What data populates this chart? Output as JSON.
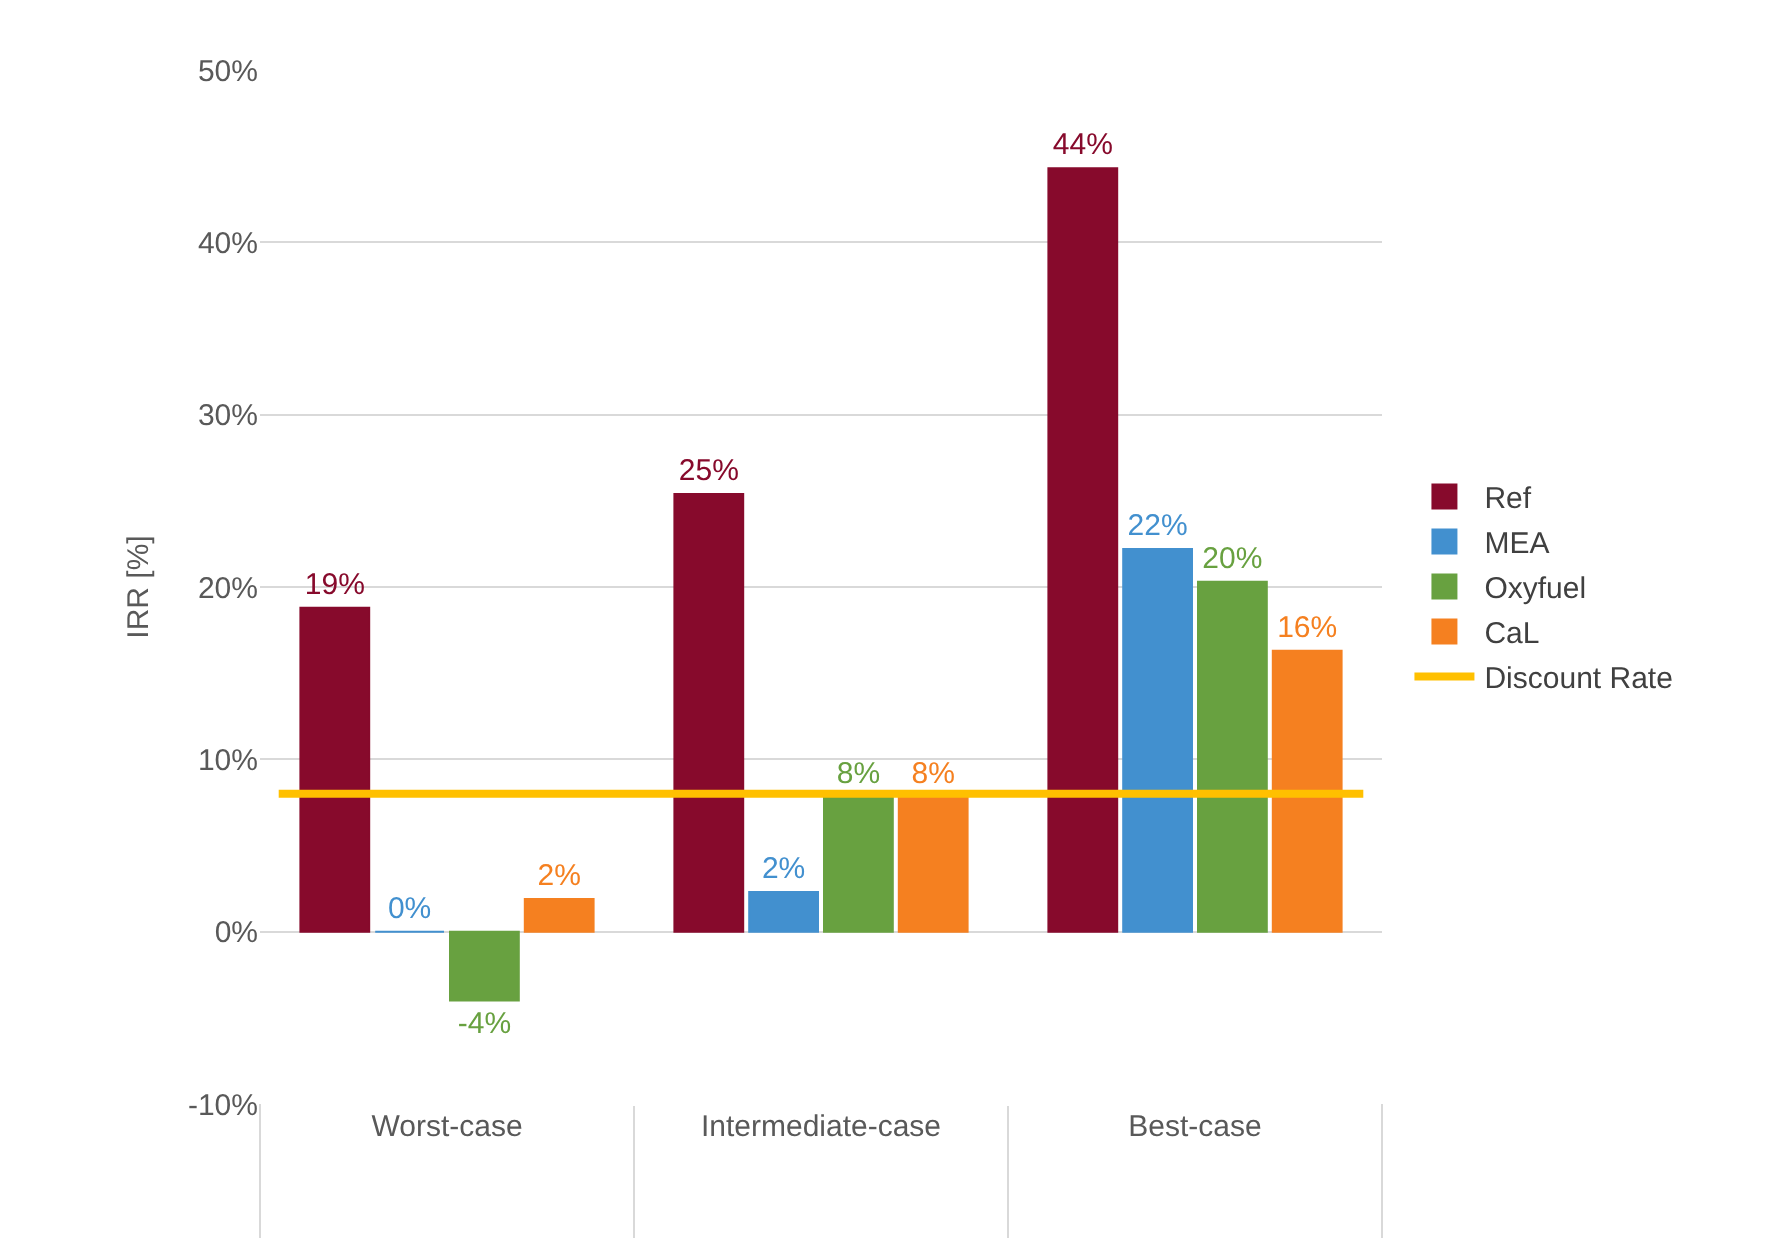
{
  "chart_data": {
    "type": "bar",
    "ylabel": "IRR [%]",
    "categories": [
      "Worst-case",
      "Intermediate-case",
      "Best-case"
    ],
    "series": [
      {
        "name": "Ref",
        "color": "#870a2c",
        "values": [
          18.8,
          25.4,
          44.3
        ],
        "value_labels": [
          "19%",
          "25%",
          "44%"
        ]
      },
      {
        "name": "MEA",
        "color": "#4290cf",
        "values": [
          0,
          2.3,
          22.2
        ],
        "value_labels": [
          "0%",
          "2%",
          "22%"
        ]
      },
      {
        "name": "Oxyfuel",
        "color": "#68a140",
        "values": [
          -4.0,
          7.8,
          20.3
        ],
        "value_labels": [
          "-4%",
          "8%",
          "20%"
        ]
      },
      {
        "name": "CaL",
        "color": "#f58020",
        "values": [
          1.9,
          7.8,
          16.3
        ],
        "value_labels": [
          "2%",
          "8%",
          "16%"
        ]
      }
    ],
    "ref_lines": [
      {
        "axis": "y",
        "value": 8,
        "label": "Discount Rate",
        "color": "#ffc000"
      }
    ],
    "ylim": [
      -10,
      50
    ],
    "yticks": [
      {
        "value": -10,
        "label": "-10%"
      },
      {
        "value": 0,
        "label": "0%"
      },
      {
        "value": 10,
        "label": "10%"
      },
      {
        "value": 20,
        "label": "20%"
      },
      {
        "value": 30,
        "label": "30%"
      },
      {
        "value": 40,
        "label": "40%"
      },
      {
        "value": 50,
        "label": "50%"
      }
    ],
    "grid": "y",
    "legend": "right"
  }
}
